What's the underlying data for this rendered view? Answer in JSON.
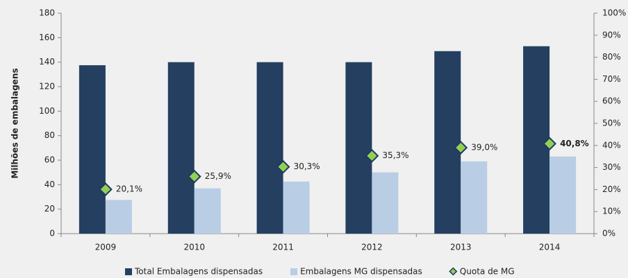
{
  "chart_data": {
    "type": "bar",
    "y_label": "Milhões de embalagens",
    "categories": [
      "2009",
      "2010",
      "2011",
      "2012",
      "2013",
      "2014"
    ],
    "series": [
      {
        "name": "Total Embalagens dispensadas",
        "type": "bar",
        "color": "#243f60",
        "values": [
          137.5,
          140,
          140,
          140,
          149,
          153
        ]
      },
      {
        "name": "Embalagens MG dispensadas",
        "type": "bar",
        "color": "#b9cde5",
        "values": [
          27.5,
          37,
          42.5,
          50,
          59,
          63
        ]
      },
      {
        "name": "Quota de MG",
        "type": "scatter",
        "axis": "y2",
        "color": "#92d050",
        "edge_color": "#1f3864",
        "values": [
          20.1,
          25.9,
          30.3,
          35.3,
          39.0,
          40.8
        ],
        "value_labels": [
          "20,1%",
          "25,9%",
          "30,3%",
          "35,3%",
          "39,0%",
          "40,8%"
        ]
      }
    ],
    "ylim": [
      0,
      180
    ],
    "yticks": [
      0,
      20,
      40,
      60,
      80,
      100,
      120,
      140,
      160,
      180
    ],
    "y2lim": [
      0,
      100
    ],
    "y2ticks": [
      {
        "value": 0,
        "label": "0%"
      },
      {
        "value": 10,
        "label": "10%"
      },
      {
        "value": 20,
        "label": "20%"
      },
      {
        "value": 30,
        "label": "30%"
      },
      {
        "value": 40,
        "label": "40%"
      },
      {
        "value": 50,
        "label": "50%"
      },
      {
        "value": 60,
        "label": "60%"
      },
      {
        "value": 70,
        "label": "70%"
      },
      {
        "value": 80,
        "label": "80%"
      },
      {
        "value": 90,
        "label": "90%"
      },
      {
        "value": 100,
        "label": "100%"
      }
    ],
    "grid": false,
    "legend": "bottom"
  }
}
